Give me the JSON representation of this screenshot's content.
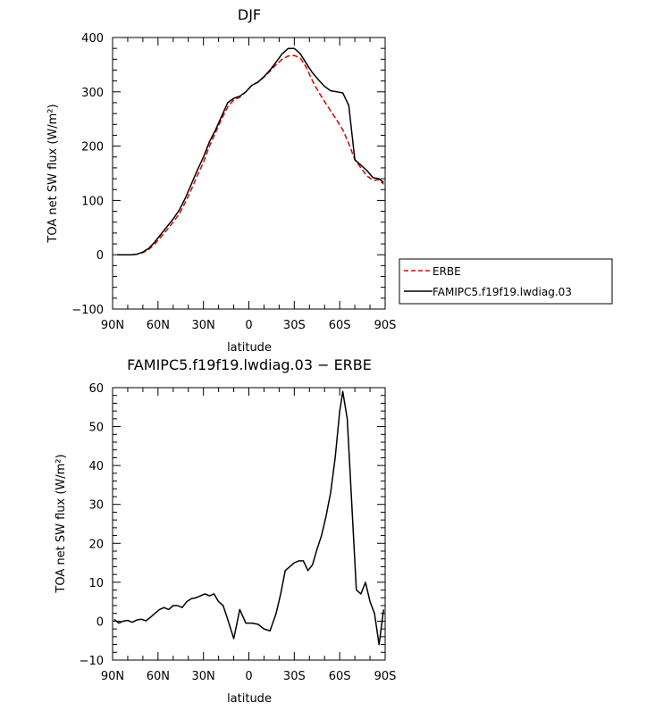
{
  "chart_data": [
    {
      "type": "line",
      "title": "DJF",
      "xlabel": "latitude",
      "ylabel": "TOA net SW flux (W/m²)",
      "xlim": [
        -90,
        90
      ],
      "ylim": [
        -100,
        400
      ],
      "x_ticks": [
        {
          "value": -90,
          "label": "90N"
        },
        {
          "value": -60,
          "label": "60N"
        },
        {
          "value": -30,
          "label": "30N"
        },
        {
          "value": 0,
          "label": "0"
        },
        {
          "value": 30,
          "label": "30S"
        },
        {
          "value": 60,
          "label": "60S"
        },
        {
          "value": 90,
          "label": "90S"
        }
      ],
      "y_ticks": [
        -100,
        0,
        100,
        200,
        300,
        400
      ],
      "legend_position": "right, outside plot",
      "series": [
        {
          "name": "ERBE",
          "color": "#dd0000",
          "dash": "dashed",
          "x": [
            -87,
            -82,
            -78,
            -74,
            -70,
            -66,
            -62,
            -58,
            -54,
            -50,
            -46,
            -42,
            -38,
            -34,
            -30,
            -26,
            -22,
            -18,
            -14,
            -10,
            -6,
            -2,
            2,
            6,
            10,
            14,
            18,
            22,
            26,
            30,
            34,
            38,
            42,
            46,
            50,
            54,
            58,
            62,
            66,
            70,
            74,
            78,
            82,
            86,
            89
          ],
          "values": [
            0,
            0,
            0,
            1,
            4,
            10,
            20,
            33,
            46,
            60,
            75,
            96,
            120,
            146,
            170,
            200,
            225,
            250,
            272,
            285,
            290,
            300,
            312,
            318,
            327,
            338,
            350,
            360,
            366,
            367,
            362,
            345,
            320,
            300,
            282,
            265,
            248,
            230,
            205,
            175,
            160,
            145,
            137,
            138,
            130
          ]
        },
        {
          "name": "FAMIPC5.f19f19.lwdiag.03",
          "color": "#000000",
          "dash": "solid",
          "x": [
            -87,
            -82,
            -78,
            -74,
            -70,
            -66,
            -62,
            -58,
            -54,
            -50,
            -46,
            -42,
            -38,
            -34,
            -30,
            -26,
            -22,
            -18,
            -14,
            -10,
            -6,
            -2,
            2,
            6,
            10,
            14,
            18,
            22,
            26,
            30,
            34,
            38,
            42,
            46,
            50,
            54,
            58,
            62,
            66,
            70,
            74,
            78,
            82,
            86,
            89
          ],
          "values": [
            0,
            0,
            0,
            1,
            5,
            12,
            24,
            38,
            52,
            66,
            82,
            104,
            130,
            156,
            180,
            208,
            230,
            255,
            280,
            288,
            292,
            300,
            312,
            318,
            328,
            340,
            355,
            370,
            380,
            380,
            370,
            352,
            335,
            322,
            310,
            302,
            300,
            298,
            275,
            175,
            165,
            155,
            142,
            140,
            133
          ]
        }
      ]
    },
    {
      "type": "line",
      "title": "FAMIPC5.f19f19.lwdiag.03 − ERBE",
      "xlabel": "latitude",
      "ylabel": "TOA net SW flux (W/m²)",
      "xlim": [
        -90,
        90
      ],
      "ylim": [
        -10,
        60
      ],
      "x_ticks": [
        {
          "value": -90,
          "label": "90N"
        },
        {
          "value": -60,
          "label": "60N"
        },
        {
          "value": -30,
          "label": "30N"
        },
        {
          "value": 0,
          "label": "0"
        },
        {
          "value": 30,
          "label": "30S"
        },
        {
          "value": 60,
          "label": "60S"
        },
        {
          "value": 90,
          "label": "90S"
        }
      ],
      "y_ticks": [
        -10,
        0,
        10,
        20,
        30,
        40,
        50,
        60
      ],
      "series": [
        {
          "color": "#000000",
          "dash": "solid",
          "x": [
            -89,
            -86,
            -83,
            -80,
            -77,
            -74,
            -71,
            -68,
            -65,
            -62,
            -59,
            -56,
            -53,
            -50,
            -47,
            -44,
            -41,
            -38,
            -35,
            -32,
            -29,
            -26,
            -23,
            -20,
            -17,
            -14,
            -10,
            -6,
            -2,
            2,
            6,
            10,
            14,
            18,
            21,
            24,
            27,
            30,
            33,
            36,
            39,
            42,
            45,
            48,
            51,
            54,
            57,
            60,
            62,
            65,
            68,
            71,
            74,
            77,
            80,
            83,
            86,
            89
          ],
          "values": [
            0.5,
            -0.5,
            0,
            0.2,
            -0.3,
            0.3,
            0.5,
            0.1,
            1,
            2,
            3,
            3.5,
            3,
            4,
            4,
            3.5,
            5,
            5.8,
            6,
            6.5,
            7,
            6.5,
            7,
            5,
            4,
            0.5,
            -4.5,
            3,
            -0.5,
            -0.5,
            -0.8,
            -2,
            -2.5,
            2,
            7,
            13,
            14,
            15,
            15.5,
            15.5,
            13,
            14.5,
            18.5,
            22,
            27,
            33,
            42,
            54,
            59,
            52,
            30,
            8,
            7,
            10,
            5,
            2,
            -6,
            3
          ]
        }
      ]
    }
  ],
  "colors": {
    "erbe": "#dd0000",
    "model": "#000000"
  }
}
